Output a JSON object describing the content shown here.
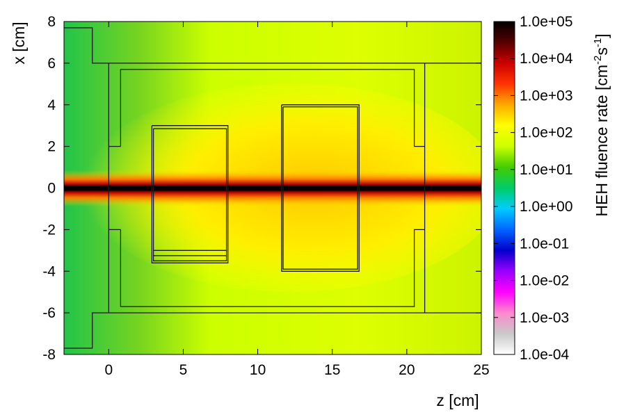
{
  "chart_data": {
    "type": "heatmap",
    "title": "",
    "xlabel": "z [cm]",
    "ylabel": "x [cm]",
    "xlim": [
      -3,
      25
    ],
    "ylim": [
      -8,
      8
    ],
    "x_ticks": [
      "0",
      "5",
      "10",
      "15",
      "20",
      "25"
    ],
    "y_ticks": [
      "8",
      "6",
      "4",
      "2",
      "0",
      "-2",
      "-4",
      "-6",
      "-8"
    ],
    "colorbar": {
      "label_main": "HEH fluence rate [cm",
      "label_exp1": "-2",
      "label_mid": "s",
      "label_exp2": "-1",
      "label_end": "]",
      "scale": "log",
      "range": [
        0.0001,
        100000
      ],
      "tick_labels": [
        "1.0e+05",
        "1.0e+04",
        "1.0e+03",
        "1.0e+02",
        "1.0e+01",
        "1.0e+00",
        "1.0e-01",
        "1.0e-02",
        "1.0e-03",
        "1.0e-04"
      ],
      "colors": [
        "#ffffff",
        "#c8c8c8",
        "#ff88cc",
        "#ff00ff",
        "#9900ff",
        "#0000cc",
        "#0066ff",
        "#00ccff",
        "#00cc66",
        "#44cc00",
        "#ccff00",
        "#ffff00",
        "#ffaa00",
        "#ff3300",
        "#cc0000",
        "#550000",
        "#000000"
      ]
    },
    "beam": {
      "center_x": 0,
      "core_half_width": 0.25,
      "peak_log_fluence": 5.0
    },
    "field_description_colors": {
      "low": "#22c44a",
      "mid": "#ccff00",
      "high": "#ffd000"
    },
    "geometry_outlines": [
      {
        "name": "left-collimator",
        "points": [
          [
            -3,
            7.7
          ],
          [
            -1.1,
            7.7
          ],
          [
            -1.1,
            6
          ],
          [
            25,
            6
          ]
        ]
      },
      {
        "name": "left-collimator-lower",
        "points": [
          [
            -3,
            -7.7
          ],
          [
            -1.1,
            -7.7
          ],
          [
            -1.1,
            -6
          ],
          [
            25,
            -6
          ]
        ]
      },
      {
        "name": "inner-frame",
        "points": [
          [
            0,
            6
          ],
          [
            0,
            2
          ],
          [
            0.8,
            2
          ],
          [
            0.8,
            5.7
          ],
          [
            20.5,
            5.7
          ],
          [
            20.5,
            2
          ],
          [
            21.2,
            2
          ],
          [
            21.2,
            6
          ]
        ]
      }
    ]
  }
}
